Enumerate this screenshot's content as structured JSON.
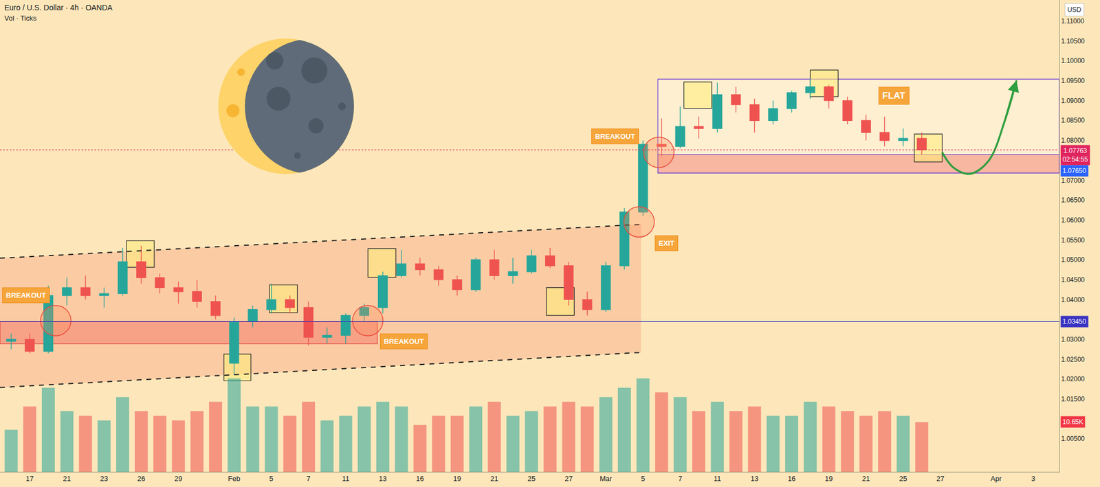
{
  "chart_data": {
    "type": "candlestick",
    "title": "Euro / U.S. Dollar · 4h · OANDA",
    "subtitle": "Vol · Ticks",
    "currency": "USD",
    "grid": false,
    "up_color": "#26a69a",
    "down_color": "#ef5350",
    "categories": [
      null,
      "17",
      null,
      "21",
      null,
      "23",
      null,
      "26",
      null,
      "29",
      null,
      null,
      "Feb",
      null,
      "5",
      null,
      "7",
      null,
      "11",
      null,
      "13",
      null,
      "16",
      null,
      "19",
      null,
      "21",
      null,
      "25",
      null,
      "27",
      null,
      "Mar",
      null,
      "5",
      null,
      "7",
      null,
      "11",
      null,
      "13",
      null,
      "16",
      null,
      "19",
      null,
      "21",
      null,
      "25",
      null,
      "27",
      null,
      null,
      "Apr",
      null,
      "3",
      null
    ],
    "ohlc": {
      "open": [
        1.0295,
        1.03,
        1.027,
        1.041,
        1.043,
        1.041,
        1.0415,
        1.0495,
        1.0455,
        1.043,
        1.042,
        1.0395,
        1.024,
        1.0345,
        1.0375,
        1.04,
        1.038,
        1.0305,
        1.031,
        1.036,
        1.038,
        1.046,
        1.049,
        1.0475,
        1.045,
        1.0425,
        1.05,
        1.046,
        1.047,
        1.051,
        1.0485,
        1.04,
        1.0375,
        1.0485,
        1.062,
        1.079,
        1.0785,
        1.0835,
        1.083,
        1.0915,
        1.089,
        1.085,
        1.088,
        1.092,
        1.0935,
        1.09,
        1.085,
        1.082,
        1.08,
        1.0805,
        null,
        null,
        null,
        null,
        null,
        null,
        null
      ],
      "high": [
        1.0315,
        1.0315,
        1.0435,
        1.0455,
        1.046,
        1.043,
        1.053,
        1.0535,
        1.0465,
        1.0445,
        1.045,
        1.041,
        1.0355,
        1.0385,
        1.044,
        1.041,
        1.0395,
        1.033,
        1.0365,
        1.039,
        1.047,
        1.0525,
        1.0505,
        1.0485,
        1.046,
        1.0505,
        1.0525,
        1.0505,
        1.0525,
        1.053,
        1.0495,
        1.042,
        1.0495,
        1.063,
        1.08,
        1.0855,
        1.0885,
        1.086,
        1.0945,
        1.0935,
        1.0905,
        1.09,
        1.0925,
        1.0955,
        1.094,
        1.091,
        1.0865,
        1.086,
        1.083,
        1.082,
        null,
        null,
        null,
        null,
        null,
        null,
        null
      ],
      "low": [
        1.0275,
        1.0265,
        1.0265,
        1.0385,
        1.04,
        1.038,
        1.041,
        1.044,
        1.0415,
        1.039,
        1.038,
        1.035,
        1.021,
        1.033,
        1.0365,
        1.0365,
        1.0285,
        1.029,
        1.029,
        1.0345,
        1.0365,
        1.0455,
        1.046,
        1.0435,
        1.041,
        1.042,
        1.045,
        1.044,
        1.0465,
        1.048,
        1.0385,
        1.036,
        1.037,
        1.0475,
        1.061,
        1.076,
        1.078,
        1.0805,
        1.082,
        1.087,
        1.082,
        1.084,
        1.087,
        1.0905,
        1.088,
        1.084,
        1.08,
        1.0785,
        1.0785,
        1.0765,
        null,
        null,
        null,
        null,
        null,
        null,
        null
      ],
      "close": [
        1.03,
        1.027,
        1.041,
        1.043,
        1.041,
        1.0415,
        1.0495,
        1.0455,
        1.043,
        1.042,
        1.0395,
        1.036,
        1.0345,
        1.0375,
        1.04,
        1.038,
        1.0305,
        1.031,
        1.036,
        1.038,
        1.046,
        1.049,
        1.0475,
        1.045,
        1.0425,
        1.05,
        1.046,
        1.047,
        1.051,
        1.0485,
        1.04,
        1.0375,
        1.0485,
        1.062,
        1.079,
        1.0785,
        1.0835,
        1.083,
        1.0915,
        1.089,
        1.085,
        1.088,
        1.092,
        1.0935,
        1.09,
        1.085,
        1.082,
        1.08,
        1.0805,
        1.07763,
        null,
        null,
        null,
        null,
        null,
        null,
        null
      ]
    },
    "volume": {
      "values": [
        9,
        14,
        18,
        13,
        12,
        11,
        16,
        13,
        12,
        11,
        13,
        15,
        20,
        14,
        14,
        12,
        15,
        11,
        12,
        14,
        15,
        14,
        10,
        12,
        12,
        14,
        15,
        12,
        13,
        14,
        15,
        14,
        16,
        18,
        20,
        17,
        16,
        13,
        15,
        13,
        14,
        12,
        12,
        15,
        14,
        13,
        12,
        13,
        12,
        10.65,
        null,
        null,
        null,
        null,
        null,
        null,
        null
      ],
      "y2lim": [
        0,
        101
      ],
      "tag": {
        "value": 10.65,
        "label": "10.65K",
        "color": "#f23645"
      }
    },
    "xlim": [
      -0.6,
      56.4
    ],
    "ylim": [
      0.9967,
      1.1153
    ],
    "yticks": [
      {
        "value": 1.005,
        "label": "1.00500"
      },
      {
        "value": 1.01,
        "label": "1.01000"
      },
      {
        "value": 1.015,
        "label": "1.01500"
      },
      {
        "value": 1.02,
        "label": "1.02000"
      },
      {
        "value": 1.025,
        "label": "1.02500"
      },
      {
        "value": 1.03,
        "label": "1.03000"
      },
      {
        "value": 1.04,
        "label": "1.04000"
      },
      {
        "value": 1.045,
        "label": "1.04500"
      },
      {
        "value": 1.05,
        "label": "1.05000"
      },
      {
        "value": 1.055,
        "label": "1.05500"
      },
      {
        "value": 1.06,
        "label": "1.06000"
      },
      {
        "value": 1.065,
        "label": "1.06500"
      },
      {
        "value": 1.07,
        "label": "1.07000"
      },
      {
        "value": 1.08,
        "label": "1.08000"
      },
      {
        "value": 1.085,
        "label": "1.08500"
      },
      {
        "value": 1.09,
        "label": "1.09000"
      },
      {
        "value": 1.095,
        "label": "1.09500"
      },
      {
        "value": 1.1,
        "label": "1.10000"
      },
      {
        "value": 1.105,
        "label": "1.10500"
      },
      {
        "value": 1.11,
        "label": "1.11000"
      }
    ],
    "price_tags": [
      {
        "value": 1.07763,
        "label": "1.07763",
        "sublabel": "02:54:55",
        "color": "#e0245e",
        "line_style": "dotted"
      },
      {
        "value": 1.0765,
        "label": "1.07650",
        "color": "#2962ff"
      },
      {
        "value": 1.0345,
        "label": "1.03450",
        "color": "#3a33c2",
        "line_style": "solid"
      }
    ],
    "channel": {
      "upper": [
        [
          -0.6,
          1.0504
        ],
        [
          33.9,
          1.0589
        ]
      ],
      "lower": [
        [
          -0.6,
          1.0179
        ],
        [
          33.9,
          1.0267
        ]
      ]
    },
    "range_box": {
      "x": [
        34.8,
        56.4
      ],
      "y": [
        1.0718,
        1.0954
      ]
    },
    "zones": [
      {
        "x": [
          -0.6,
          19.7
        ],
        "y": [
          1.0289,
          1.0344
        ]
      },
      {
        "x": [
          34.8,
          56.4
        ],
        "y": [
          1.0718,
          1.0765
        ]
      }
    ],
    "boxes": [
      {
        "x": [
          6.2,
          7.7
        ],
        "y": [
          1.0481,
          1.0548
        ]
      },
      {
        "x": [
          11.45,
          12.9
        ],
        "y": [
          1.0196,
          1.0263
        ]
      },
      {
        "x": [
          13.9,
          15.4
        ],
        "y": [
          1.0367,
          1.0437
        ]
      },
      {
        "x": [
          19.2,
          20.7
        ],
        "y": [
          1.0456,
          1.0528
        ]
      },
      {
        "x": [
          28.8,
          30.3
        ],
        "y": [
          1.036,
          1.043
        ]
      },
      {
        "x": [
          36.2,
          37.7
        ],
        "y": [
          1.0881,
          1.0947
        ]
      },
      {
        "x": [
          43.0,
          44.5
        ],
        "y": [
          1.091,
          1.0977
        ]
      },
      {
        "x": [
          48.6,
          50.1
        ],
        "y": [
          1.0746,
          1.0816
        ]
      }
    ],
    "circles": [
      {
        "x": 2.4,
        "y": 1.0347
      },
      {
        "x": 19.19,
        "y": 1.0347
      },
      {
        "x": 33.79,
        "y": 1.0595
      },
      {
        "x": 34.85,
        "y": 1.077
      }
    ],
    "labels": [
      {
        "text": "BREAKOUT",
        "x": 0.81,
        "y": 1.0411
      },
      {
        "text": "BREAKOUT",
        "x": 21.15,
        "y": 1.0295
      },
      {
        "text": "EXIT",
        "x": 35.26,
        "y": 1.0542
      },
      {
        "text": "BREAKOUT",
        "x": 32.5,
        "y": 1.081
      },
      {
        "text": "FLAT",
        "x": 47.5,
        "y": 1.0912
      }
    ],
    "projection": {
      "color": "#2e9e3e",
      "x": [
        50.1,
        50.7,
        51.6,
        52.6,
        53.5,
        54.1
      ],
      "y": [
        1.077,
        1.0732,
        1.0716,
        1.0749,
        1.0854,
        1.0951
      ]
    }
  }
}
